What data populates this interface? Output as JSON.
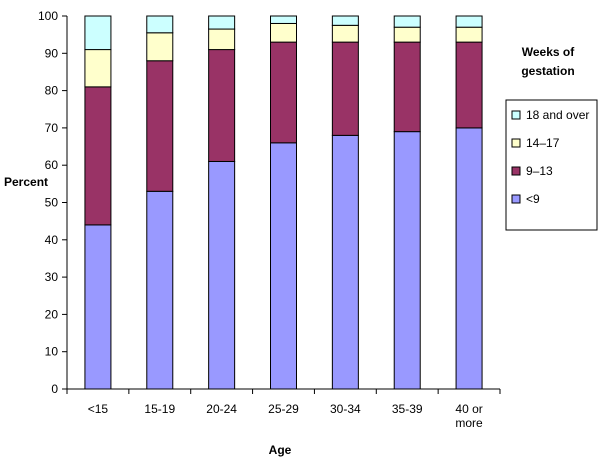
{
  "chart_data": {
    "type": "bar",
    "stacked": true,
    "title": "",
    "xlabel": "Age",
    "ylabel": "Percent",
    "ylim": [
      0,
      100
    ],
    "yticks": [
      0,
      10,
      20,
      30,
      40,
      50,
      60,
      70,
      80,
      90,
      100
    ],
    "categories": [
      [
        "<15"
      ],
      [
        "15-19"
      ],
      [
        "20-24"
      ],
      [
        "25-29"
      ],
      [
        "30-34"
      ],
      [
        "35-39"
      ],
      [
        "40 or",
        "more"
      ]
    ],
    "legend": {
      "title": [
        "Weeks of",
        "gestation"
      ],
      "placement": "right"
    },
    "grid": false,
    "series": [
      {
        "name": "<9",
        "color": "#9999ff",
        "values": [
          44,
          53,
          61,
          66,
          68,
          69,
          70
        ]
      },
      {
        "name": "9–13",
        "color": "#993366",
        "values": [
          37,
          35,
          30,
          27,
          25,
          24,
          23
        ]
      },
      {
        "name": "14–17",
        "color": "#ffffcc",
        "values": [
          10,
          7.5,
          5.5,
          5,
          4.5,
          4,
          4
        ]
      },
      {
        "name": "18 and over",
        "color": "#ccffff",
        "values": [
          9,
          4.5,
          3.5,
          2,
          2.5,
          3,
          3
        ]
      }
    ]
  }
}
